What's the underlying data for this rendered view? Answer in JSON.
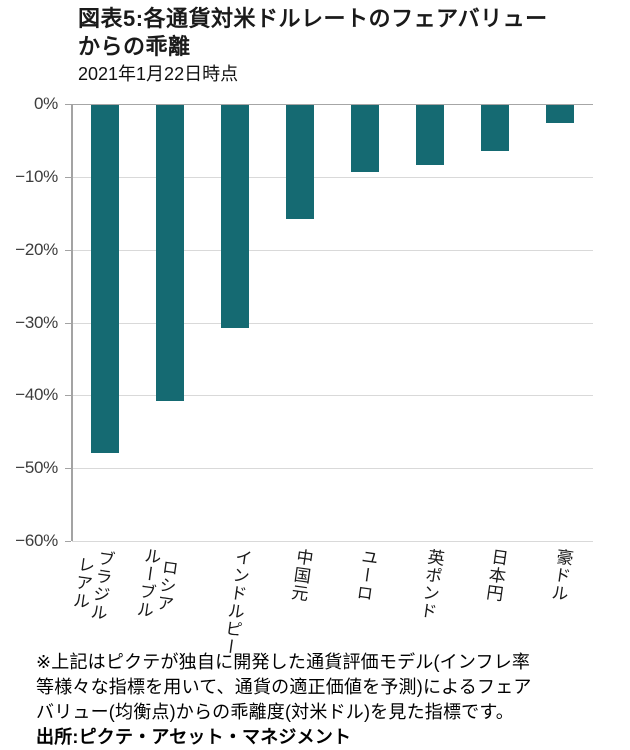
{
  "header": {
    "title_line1": "図表5:各通貨対米ドルレートのフェアバリュー",
    "title_line2": "からの乖離",
    "subtitle": "2021年1月22日時点"
  },
  "chart_data": {
    "type": "bar",
    "title": "図表5:各通貨対米ドルレートのフェアバリューからの乖離",
    "as_of": "2021年1月22日時点",
    "unit": "%",
    "categories": [
      "ブラジルレアル",
      "ロシアルーブル",
      "インドルピー",
      "中国元",
      "ユーロ",
      "英ポンド",
      "日本円",
      "豪ドル"
    ],
    "category_columns": [
      [
        "ブラジル",
        "レアル"
      ],
      [
        "ロシア",
        "ルーブル"
      ],
      [
        "インドルピー"
      ],
      [
        "中国元"
      ],
      [
        "ユーロ"
      ],
      [
        "英ポンド"
      ],
      [
        "日本円"
      ],
      [
        "豪ドル"
      ]
    ],
    "values": [
      -47.8,
      -40.6,
      -30.6,
      -15.7,
      -9.2,
      -8.2,
      -6.3,
      -2.5
    ],
    "ylim": [
      -60,
      0
    ],
    "yticks": [
      0,
      -10,
      -20,
      -30,
      -40,
      -50,
      -60
    ],
    "ytick_labels": [
      "0%",
      "−10%",
      "−20%",
      "−30%",
      "−40%",
      "−50%",
      "−60%"
    ],
    "grid": true,
    "legend": "none",
    "colors": {
      "bar": "#156a72",
      "grid": "#d9d9d9",
      "axis": "#a3a3a3",
      "zero_line": "#a6a6a6",
      "tick_text": "#3d3d3d",
      "label_text": "#1a1a1a"
    }
  },
  "footnote": {
    "line1": "※上記はピクテが独自に開発した通貨評価モデル(インフレ率",
    "line2": "等様々な指標を用いて、通貨の適正価値を予測)によるフェア",
    "line3": "バリュー(均衡点)からの乖離度(対米ドル)を見た指標です。",
    "source": "出所:ピクテ・アセット・マネジメント"
  }
}
